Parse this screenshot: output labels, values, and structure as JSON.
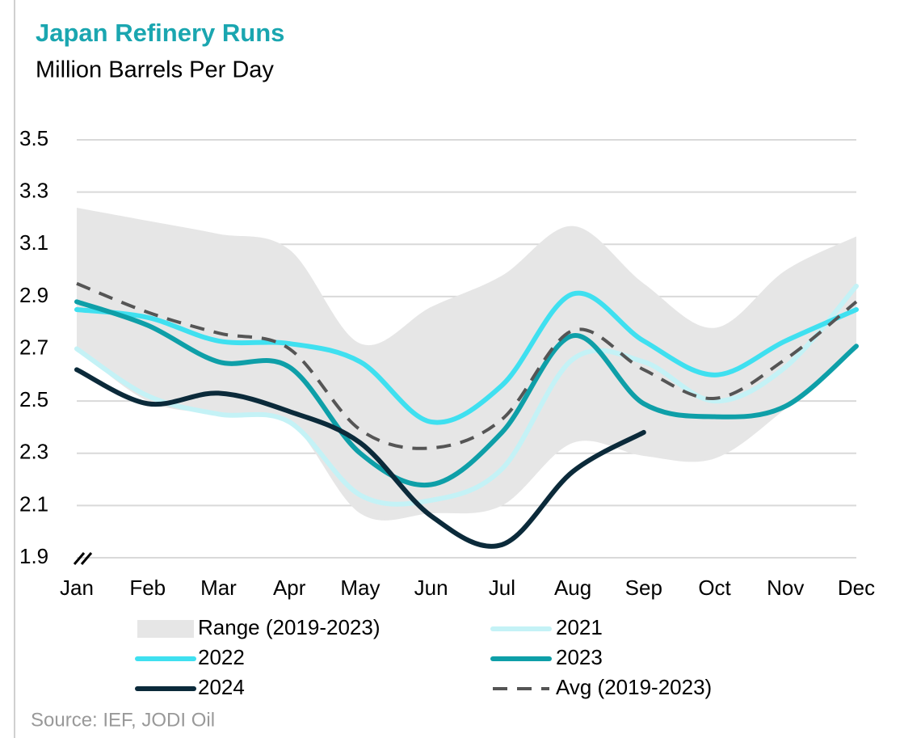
{
  "chart_data": {
    "type": "line",
    "title": "Japan Refinery Runs",
    "subtitle": "Million Barrels Per Day",
    "source": "Source: IEF, JODI Oil",
    "categories": [
      "Jan",
      "Feb",
      "Mar",
      "Apr",
      "May",
      "Jun",
      "Jul",
      "Aug",
      "Sep",
      "Oct",
      "Nov",
      "Dec"
    ],
    "ylim": [
      1.9,
      3.5
    ],
    "yticks": [
      1.9,
      2.1,
      2.3,
      2.5,
      2.7,
      2.9,
      3.1,
      3.3,
      3.5
    ],
    "grid": true,
    "range": {
      "name": "Range (2019-2023)",
      "color": "#e6e6e6",
      "upper": [
        3.24,
        3.19,
        3.14,
        3.08,
        2.72,
        2.86,
        2.98,
        3.17,
        2.95,
        2.78,
        3.0,
        3.13
      ],
      "lower": [
        2.7,
        2.5,
        2.45,
        2.42,
        2.07,
        2.07,
        2.1,
        2.34,
        2.29,
        2.28,
        2.47,
        2.7
      ]
    },
    "series": [
      {
        "name": "2021",
        "color": "#c4f2f6",
        "values": [
          2.7,
          2.52,
          2.45,
          2.42,
          2.14,
          2.12,
          2.24,
          2.66,
          2.65,
          2.5,
          2.63,
          2.94
        ]
      },
      {
        "name": "2022",
        "color": "#3fe0f0",
        "values": [
          2.85,
          2.82,
          2.73,
          2.72,
          2.65,
          2.42,
          2.56,
          2.91,
          2.73,
          2.6,
          2.73,
          2.85
        ]
      },
      {
        "name": "2023",
        "color": "#0e9fa8",
        "values": [
          2.88,
          2.79,
          2.65,
          2.63,
          2.3,
          2.18,
          2.38,
          2.75,
          2.49,
          2.44,
          2.48,
          2.71
        ]
      },
      {
        "name": "2024",
        "color": "#0b2a3a",
        "values": [
          2.62,
          2.49,
          2.53,
          2.46,
          2.34,
          2.06,
          1.95,
          2.23,
          2.38,
          null,
          null,
          null
        ]
      },
      {
        "name": "Avg (2019-2023)",
        "color": "#555555",
        "dashed": true,
        "values": [
          2.95,
          2.84,
          2.76,
          2.7,
          2.39,
          2.32,
          2.43,
          2.77,
          2.62,
          2.51,
          2.66,
          2.88
        ]
      }
    ]
  }
}
